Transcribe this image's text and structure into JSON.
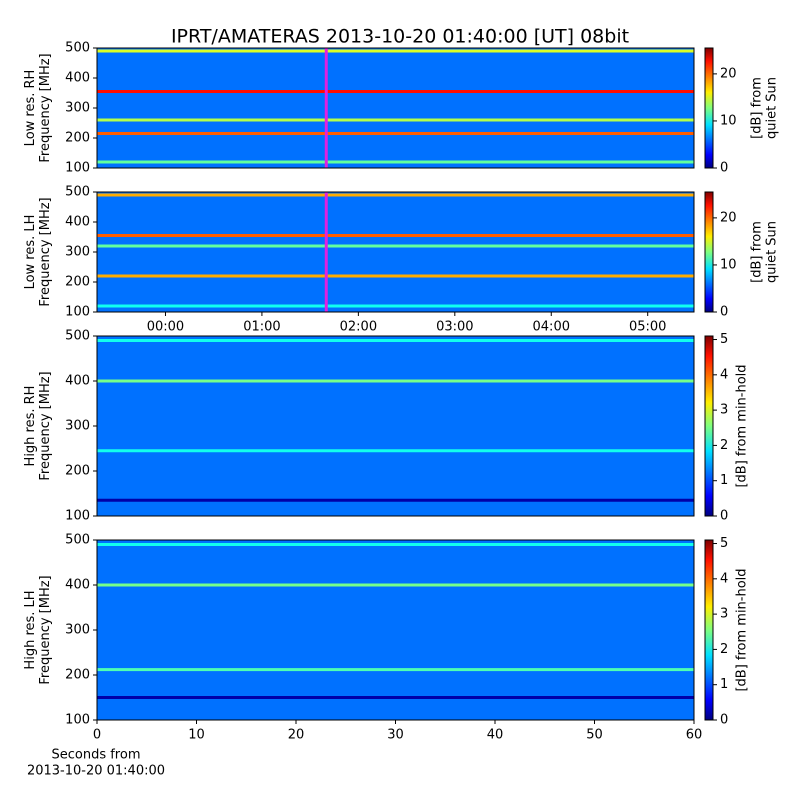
{
  "chart_data": [
    {
      "type": "heatmap",
      "title": "IPRT/AMATERAS 2013-10-20 01:40:00 [UT]   08bit",
      "ylabel": [
        "Low res. RH",
        "Frequency [MHz]"
      ],
      "ylim": [
        100,
        500
      ],
      "yticks": [
        100,
        200,
        300,
        400,
        500
      ],
      "xlim": [
        -0.71,
        5.48
      ],
      "cursor": 1.667,
      "cursor_color": "#e020e0",
      "background_level": 6,
      "bands": [
        {
          "freq": 490,
          "level": 15
        },
        {
          "freq": 355,
          "level": 22
        },
        {
          "freq": 260,
          "level": 14
        },
        {
          "freq": 215,
          "level": 20
        },
        {
          "freq": 120,
          "level": 12
        }
      ],
      "colorbar": {
        "label": [
          "[dB] from",
          "quiet Sun"
        ],
        "lim": [
          0,
          25.5
        ],
        "ticks": [
          0,
          10,
          20
        ]
      }
    },
    {
      "type": "heatmap",
      "ylabel": [
        "Low res. LH",
        "Frequency [MHz]"
      ],
      "ylim": [
        100,
        500
      ],
      "yticks": [
        100,
        200,
        300,
        400,
        500
      ],
      "xlim": [
        -0.71,
        5.48
      ],
      "xticks": [
        {
          "value": 0,
          "label": "00:00"
        },
        {
          "value": 1,
          "label": "01:00"
        },
        {
          "value": 2,
          "label": "02:00"
        },
        {
          "value": 3,
          "label": "03:00"
        },
        {
          "value": 4,
          "label": "04:00"
        },
        {
          "value": 5,
          "label": "05:00"
        }
      ],
      "cursor": 1.667,
      "cursor_color": "#e020e0",
      "background_level": 6,
      "bands": [
        {
          "freq": 490,
          "level": 18
        },
        {
          "freq": 355,
          "level": 20
        },
        {
          "freq": 320,
          "level": 12
        },
        {
          "freq": 220,
          "level": 18
        },
        {
          "freq": 120,
          "level": 10
        }
      ],
      "colorbar": {
        "label": [
          "[dB] from",
          "quiet Sun"
        ],
        "lim": [
          0,
          25.5
        ],
        "ticks": [
          0,
          10,
          20
        ]
      }
    },
    {
      "type": "heatmap",
      "ylabel": [
        "High res. RH",
        "Frequency [MHz]"
      ],
      "ylim": [
        100,
        500
      ],
      "yticks": [
        100,
        200,
        300,
        400,
        500
      ],
      "xlim": [
        0,
        60
      ],
      "background_level": 1.2,
      "bands": [
        {
          "freq": 490,
          "level": 2
        },
        {
          "freq": 400,
          "level": 2.5
        },
        {
          "freq": 245,
          "level": 2
        },
        {
          "freq": 135,
          "level": 0.2
        }
      ],
      "colorbar": {
        "label": [
          "[dB] from min-hold"
        ],
        "lim": [
          0,
          5.1
        ],
        "ticks": [
          0,
          1,
          2,
          3,
          4,
          5
        ]
      }
    },
    {
      "type": "heatmap",
      "ylabel": [
        "High res. LH",
        "Frequency [MHz]"
      ],
      "ylim": [
        100,
        500
      ],
      "yticks": [
        100,
        200,
        300,
        400,
        500
      ],
      "xlim": [
        0,
        60
      ],
      "xticks": [
        0,
        10,
        20,
        30,
        40,
        50,
        60
      ],
      "xlabel": [
        "Seconds from",
        "2013-10-20 01:40:00"
      ],
      "background_level": 1.2,
      "bands": [
        {
          "freq": 490,
          "level": 2
        },
        {
          "freq": 400,
          "level": 2.5
        },
        {
          "freq": 212,
          "level": 2.3
        },
        {
          "freq": 150,
          "level": 0.2
        }
      ],
      "colorbar": {
        "label": [
          "[dB] from min-hold"
        ],
        "lim": [
          0,
          5.1
        ],
        "ticks": [
          0,
          1,
          2,
          3,
          4,
          5
        ]
      }
    }
  ]
}
